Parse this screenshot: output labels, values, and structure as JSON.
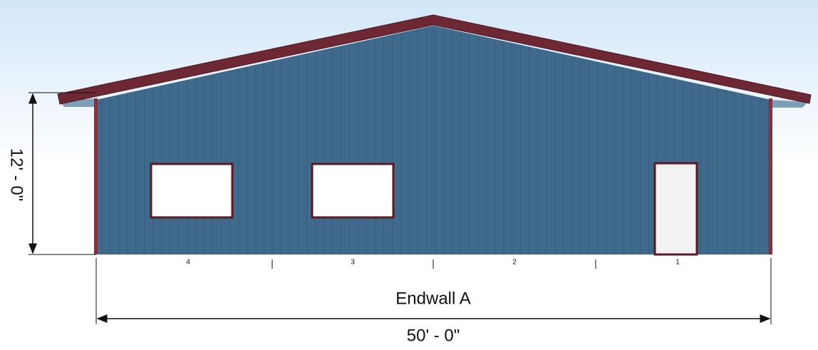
{
  "dimensions": {
    "height": "12' - 0\"",
    "width": "50' - 0\""
  },
  "wall": {
    "name": "Endwall A",
    "bays": [
      "4",
      "3",
      "2",
      "1"
    ]
  }
}
